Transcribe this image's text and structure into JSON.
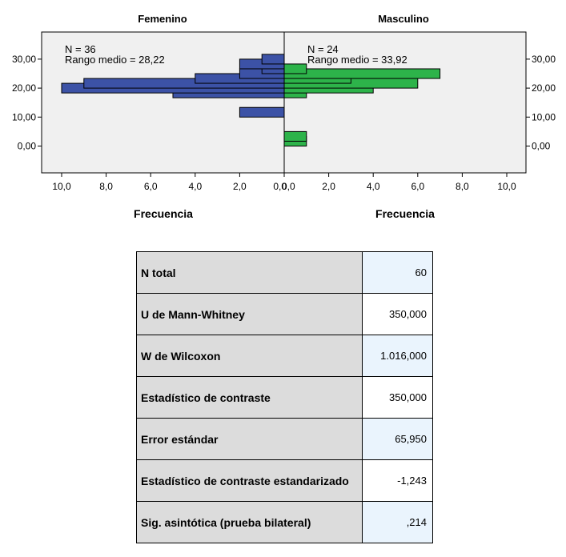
{
  "chart_data": {
    "type": "bar",
    "orientation": "horizontal",
    "grid": false,
    "bin_width": 3.33,
    "y_ticks": [
      "0,00",
      "10,00",
      "20,00",
      "30,00"
    ],
    "y_tick_values": [
      0,
      10,
      20,
      30
    ],
    "ylim": [
      -10,
      40
    ],
    "panels": [
      {
        "title": "Femenino",
        "xlabel": "Frecuencia",
        "x_ticks": [
          "10,0",
          "8,0",
          "6,0",
          "4,0",
          "2,0",
          "0,0"
        ],
        "x_tick_values": [
          10,
          8,
          6,
          4,
          2,
          0
        ],
        "xlim": [
          0,
          10.5
        ],
        "annotation": [
          "N = 36",
          "Rango medio = 28,22"
        ],
        "color": "#3c52a6",
        "bins": [
          {
            "y": 10,
            "value": 2
          },
          {
            "y": 16.67,
            "value": 5
          },
          {
            "y": 18.33,
            "value": 10
          },
          {
            "y": 20,
            "value": 9
          },
          {
            "y": 21.67,
            "value": 4
          },
          {
            "y": 23.33,
            "value": 2
          },
          {
            "y": 25,
            "value": 1
          },
          {
            "y": 26.67,
            "value": 2
          },
          {
            "y": 28.33,
            "value": 1
          }
        ]
      },
      {
        "title": "Masculino",
        "xlabel": "Frecuencia",
        "x_ticks": [
          "0,0",
          "2,0",
          "4,0",
          "6,0",
          "8,0",
          "10,0"
        ],
        "x_tick_values": [
          0,
          2,
          4,
          6,
          8,
          10
        ],
        "xlim": [
          0,
          10.5
        ],
        "annotation": [
          "N = 24",
          "Rango medio = 33,92"
        ],
        "color": "#2db34a",
        "bins": [
          {
            "y": 0,
            "value": 1
          },
          {
            "y": 1.67,
            "value": 1
          },
          {
            "y": 16.67,
            "value": 1
          },
          {
            "y": 18.33,
            "value": 4
          },
          {
            "y": 20,
            "value": 6
          },
          {
            "y": 21.67,
            "value": 3
          },
          {
            "y": 23.33,
            "value": 7
          },
          {
            "y": 25,
            "value": 1
          }
        ]
      }
    ]
  },
  "stats_table": [
    {
      "label": "N total",
      "value": "60"
    },
    {
      "label": "U de Mann-Whitney",
      "value": "350,000"
    },
    {
      "label": "W de Wilcoxon",
      "value": "1.016,000"
    },
    {
      "label": "Estadístico de contraste",
      "value": "350,000"
    },
    {
      "label": "Error estándar",
      "value": "65,950"
    },
    {
      "label": "Estadístico de contraste estandarizado",
      "value": "-1,243"
    },
    {
      "label": "Sig. asintótica (prueba bilateral)",
      "value": ",214"
    }
  ]
}
